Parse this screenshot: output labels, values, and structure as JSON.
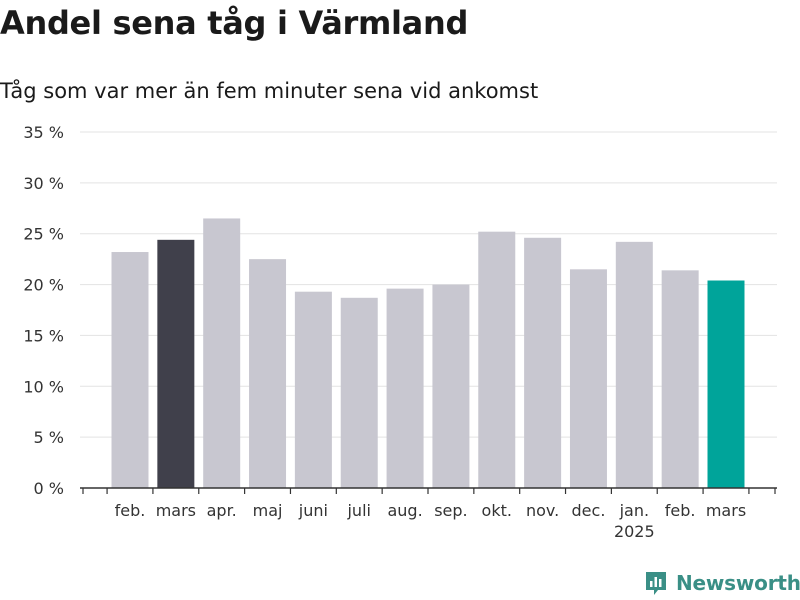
{
  "title": "Andel sena tåg i Värmland",
  "subtitle": "Tåg som var mer än fem minuter sena vid ankomst",
  "brand": "Newsworthy",
  "colors": {
    "default": "#c8c7d0",
    "highlight_start": "#40404b",
    "highlight_end": "#00a49a",
    "grid": "#e3e3e3",
    "text": "#333333",
    "brand": "#3a8f86"
  },
  "chart_data": {
    "type": "bar",
    "categories": [
      "feb.",
      "mars",
      "apr.",
      "maj",
      "juni",
      "juli",
      "aug.",
      "sep.",
      "okt.",
      "nov.",
      "dec.",
      "jan.",
      "feb.",
      "mars"
    ],
    "category_sublabels": [
      "",
      "",
      "",
      "",
      "",
      "",
      "",
      "",
      "",
      "",
      "",
      "2025",
      "",
      ""
    ],
    "values": [
      23.2,
      24.4,
      26.5,
      22.5,
      19.3,
      18.7,
      19.6,
      20.0,
      25.2,
      24.6,
      21.5,
      24.2,
      21.4,
      20.4
    ],
    "highlight": {
      "1": "highlight_start",
      "13": "highlight_end"
    },
    "y_ticks": [
      "0 %",
      "5 %",
      "10 %",
      "15 %",
      "20 %",
      "25 %",
      "30 %",
      "35 %"
    ],
    "ylim": [
      0,
      35
    ],
    "grid": true
  }
}
